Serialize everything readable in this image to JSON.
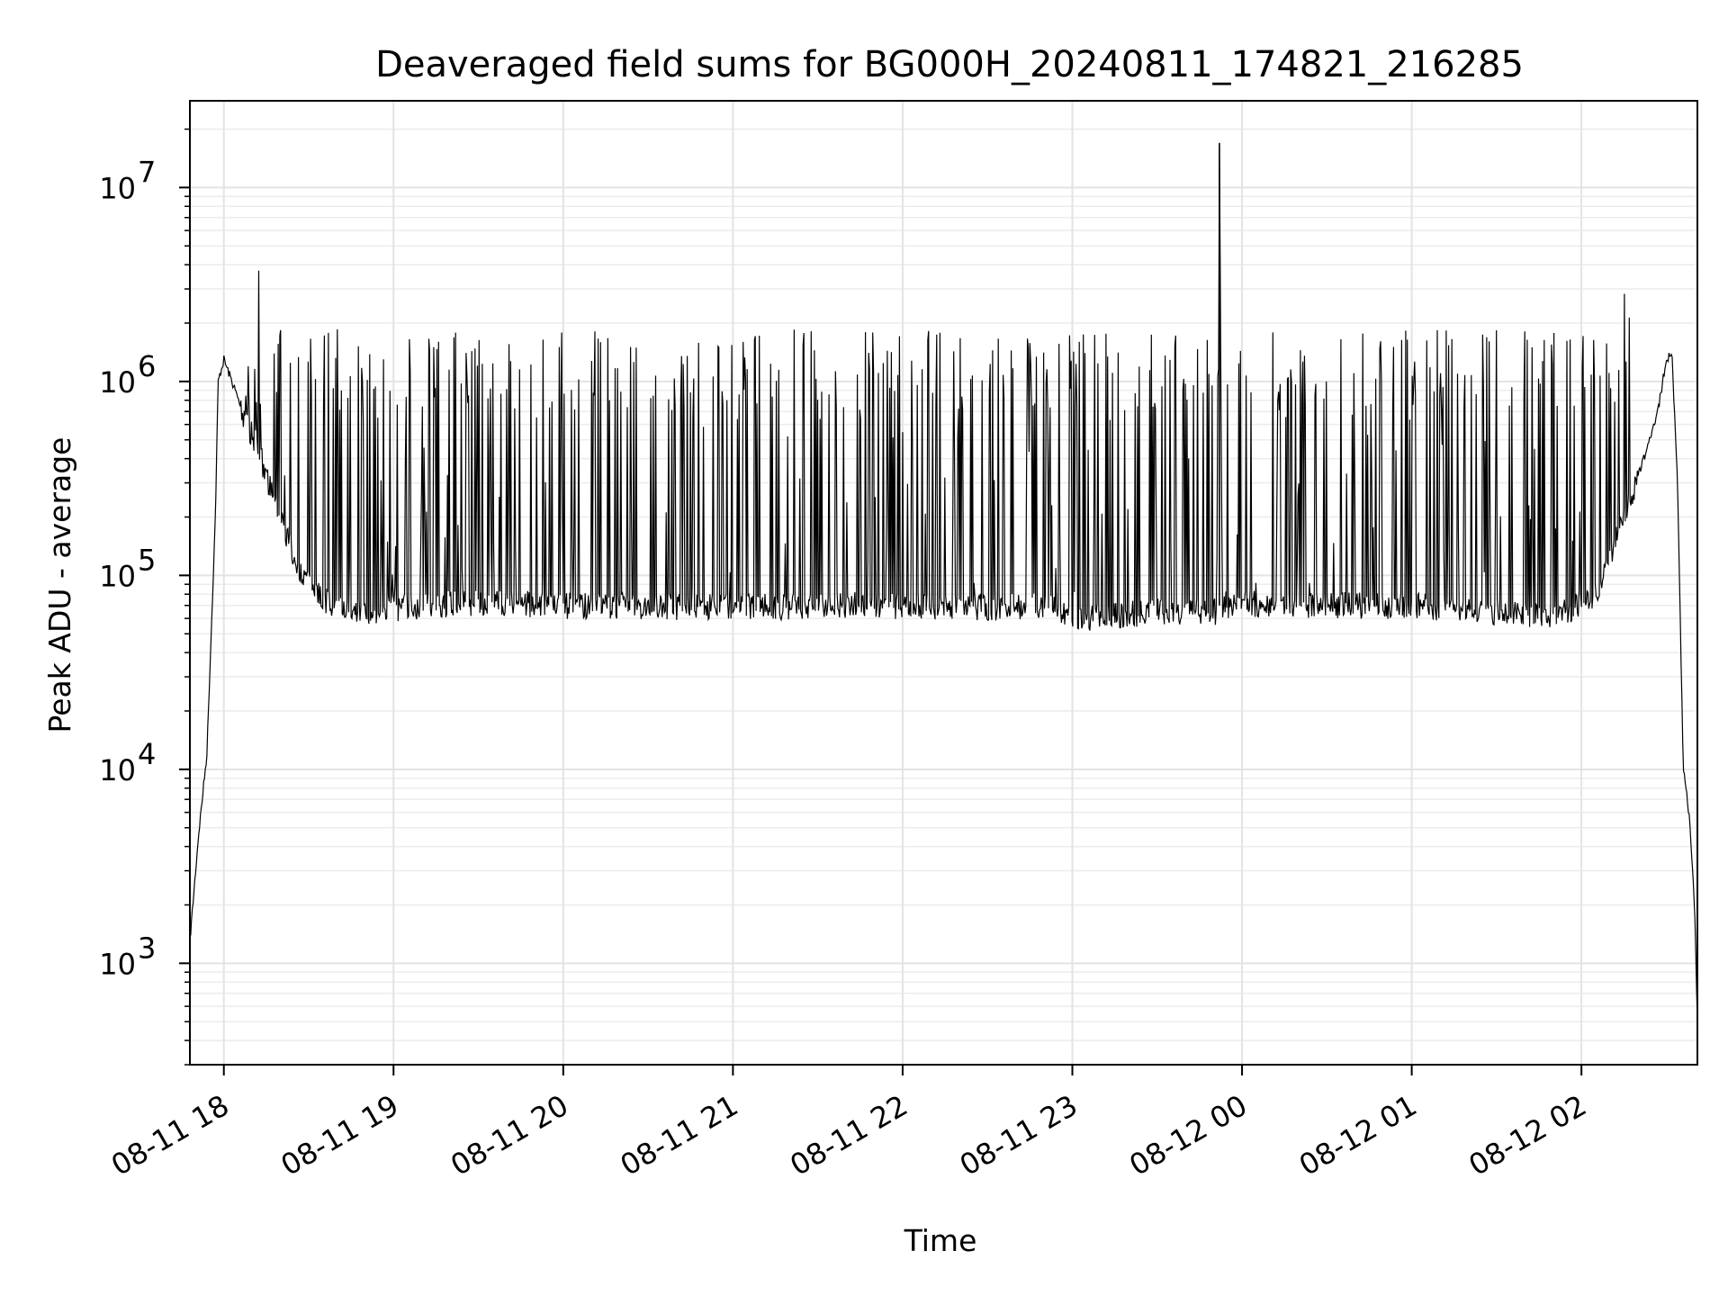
{
  "chart_data": {
    "type": "line",
    "title": "Deaveraged field sums for BG000H_20240811_174821_216285",
    "xlabel": "Time",
    "ylabel": "Peak ADU - average",
    "y_scale": "log",
    "ylim": [
      300,
      28000000
    ],
    "xlim": [
      "2024-08-11 17:48",
      "2024-08-12 02:41"
    ],
    "grid": true,
    "line_color": "#000000",
    "x_ticks": [
      {
        "t": "2024-08-11 18:00",
        "label": "08-11 18"
      },
      {
        "t": "2024-08-11 19:00",
        "label": "08-11 19"
      },
      {
        "t": "2024-08-11 20:00",
        "label": "08-11 20"
      },
      {
        "t": "2024-08-11 21:00",
        "label": "08-11 21"
      },
      {
        "t": "2024-08-11 22:00",
        "label": "08-11 22"
      },
      {
        "t": "2024-08-11 23:00",
        "label": "08-11 23"
      },
      {
        "t": "2024-08-12 00:00",
        "label": "08-12 00"
      },
      {
        "t": "2024-08-12 01:00",
        "label": "08-12 01"
      },
      {
        "t": "2024-08-12 02:00",
        "label": "08-12 02"
      }
    ],
    "y_ticks": [
      {
        "value": 1000,
        "base": "10",
        "exp": "3"
      },
      {
        "value": 10000,
        "base": "10",
        "exp": "4"
      },
      {
        "value": 100000,
        "base": "10",
        "exp": "5"
      },
      {
        "value": 1000000,
        "base": "10",
        "exp": "6"
      },
      {
        "value": 10000000,
        "base": "10",
        "exp": "7"
      }
    ],
    "series": [
      {
        "x": [
          "2024-08-11 17:48",
          "2024-08-11 17:51",
          "2024-08-11 17:54",
          "2024-08-11 17:57",
          "2024-08-11 17:58",
          "2024-08-11 18:00",
          "2024-08-11 18:04",
          "2024-08-11 18:08",
          "2024-08-11 18:12",
          "2024-08-11 18:16",
          "2024-08-11 18:20",
          "2024-08-11 18:25",
          "2024-08-11 18:30",
          "2024-08-11 18:35",
          "2024-08-11 18:40",
          "2024-08-11 18:50",
          "2024-08-11 19:00",
          "2024-08-11 19:15",
          "2024-08-11 19:30",
          "2024-08-11 19:45",
          "2024-08-11 20:00",
          "2024-08-11 20:30",
          "2024-08-11 21:00",
          "2024-08-11 21:30",
          "2024-08-11 22:00",
          "2024-08-11 22:30",
          "2024-08-11 22:50",
          "2024-08-11 23:00",
          "2024-08-11 23:30",
          "2024-08-11 23:51",
          "2024-08-11 23:52",
          "2024-08-11 23:53",
          "2024-08-12 00:00",
          "2024-08-12 00:30",
          "2024-08-12 01:00",
          "2024-08-12 01:30",
          "2024-08-12 01:45",
          "2024-08-12 01:55",
          "2024-08-12 02:05",
          "2024-08-12 02:15",
          "2024-08-12 02:22",
          "2024-08-12 02:27",
          "2024-08-12 02:30",
          "2024-08-12 02:32",
          "2024-08-12 02:34",
          "2024-08-12 02:36",
          "2024-08-12 02:38",
          "2024-08-12 02:40",
          "2024-08-12 02:41"
        ],
        "y": [
          1300,
          4500,
          12000,
          200000,
          1000000,
          1300000,
          900000,
          600000,
          450000,
          300000,
          200000,
          120000,
          90000,
          75000,
          70000,
          65000,
          68000,
          70000,
          72000,
          71000,
          70000,
          69000,
          68000,
          70000,
          70000,
          68000,
          70000,
          60000,
          65000,
          65000,
          17000000,
          70000,
          72000,
          70000,
          70000,
          65000,
          62000,
          65000,
          80000,
          200000,
          400000,
          700000,
          1300000,
          1400000,
          300000,
          10000,
          6000,
          2000,
          500
        ]
      }
    ]
  }
}
